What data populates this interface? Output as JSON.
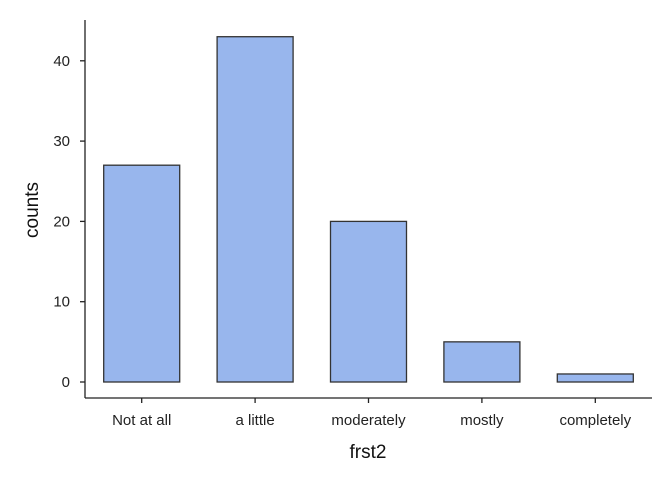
{
  "chart_data": {
    "type": "bar",
    "categories": [
      "Not at all",
      "a little",
      "moderately",
      "mostly",
      "completely"
    ],
    "values": [
      27,
      43,
      20,
      5,
      1
    ],
    "title": "",
    "xlabel": "frst2",
    "ylabel": "counts",
    "ylim": [
      0,
      45
    ],
    "yticks": [
      0,
      10,
      20,
      30,
      40
    ],
    "grid": false,
    "bar_color": "#98b6ed",
    "bar_edge_color": "#333333"
  }
}
